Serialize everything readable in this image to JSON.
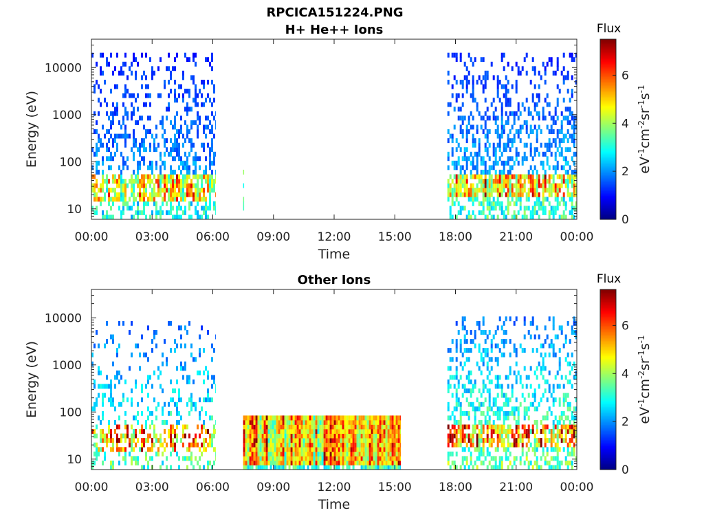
{
  "figure": {
    "filename": "RPCICA151224.PNG"
  },
  "chart_data": [
    {
      "type": "heatmap",
      "title": "H+ He++ Ions",
      "xlabel": "Time",
      "ylabel": "Energy (eV)",
      "x_ticks": [
        "00:00",
        "03:00",
        "06:00",
        "09:00",
        "12:00",
        "15:00",
        "18:00",
        "21:00",
        "00:00"
      ],
      "x_range_hours": [
        0,
        24
      ],
      "y_scale": "log",
      "y_ticks": [
        "10",
        "100",
        "1000",
        "10000"
      ],
      "y_range_eV": [
        6,
        40000
      ],
      "colorbar": {
        "title": "Flux",
        "units": "eV-1cm-2sr-1s-1",
        "units_parts": [
          "eV",
          "-1",
          "cm",
          "-2",
          "sr",
          "-1",
          "s",
          "-1"
        ],
        "ticks": [
          "0",
          "2",
          "4",
          "6"
        ],
        "range": [
          0,
          7.5
        ],
        "colormap": "jet"
      },
      "intervals": [
        {
          "start_h": 0.0,
          "end_h": 6.15,
          "core_low_eV": 15,
          "core_high_eV": 60,
          "core_flux": 4.6,
          "tail_high_eV": 20000,
          "tail_flux": 1.5,
          "density": 0.55
        },
        {
          "start_h": 7.5,
          "end_h": 7.55,
          "core_low_eV": 6,
          "core_high_eV": 80,
          "core_flux": 2.6,
          "tail_high_eV": 80,
          "tail_flux": 2.4,
          "density": 0.25
        },
        {
          "start_h": 17.6,
          "end_h": 24.0,
          "core_low_eV": 20,
          "core_high_eV": 60,
          "core_flux": 5.0,
          "tail_high_eV": 20000,
          "tail_flux": 1.6,
          "density": 0.6
        }
      ]
    },
    {
      "type": "heatmap",
      "title": "Other Ions",
      "xlabel": "Time",
      "ylabel": "Energy (eV)",
      "x_ticks": [
        "00:00",
        "03:00",
        "06:00",
        "09:00",
        "12:00",
        "15:00",
        "18:00",
        "21:00",
        "00:00"
      ],
      "x_range_hours": [
        0,
        24
      ],
      "y_scale": "log",
      "y_ticks": [
        "10",
        "100",
        "1000",
        "10000"
      ],
      "y_range_eV": [
        6,
        40000
      ],
      "colorbar": {
        "title": "Flux",
        "units": "eV-1cm-2sr-1s-1",
        "units_parts": [
          "eV",
          "-1",
          "cm",
          "-2",
          "sr",
          "-1",
          "s",
          "-1"
        ],
        "ticks": [
          "0",
          "2",
          "4",
          "6"
        ],
        "range": [
          0,
          7.5
        ],
        "colormap": "jet"
      },
      "intervals": [
        {
          "start_h": 0.0,
          "end_h": 6.15,
          "core_low_eV": 15,
          "core_high_eV": 50,
          "core_flux": 5.2,
          "tail_high_eV": 8000,
          "tail_flux": 2.2,
          "density": 0.35
        },
        {
          "start_h": 7.5,
          "end_h": 15.3,
          "core_low_eV": 8,
          "core_high_eV": 80,
          "core_flux": 5.0,
          "tail_high_eV": 80,
          "tail_flux": 4.2,
          "density": 0.95
        },
        {
          "start_h": 17.6,
          "end_h": 24.0,
          "core_low_eV": 20,
          "core_high_eV": 50,
          "core_flux": 5.6,
          "tail_high_eV": 10000,
          "tail_flux": 2.4,
          "density": 0.55
        }
      ]
    }
  ]
}
